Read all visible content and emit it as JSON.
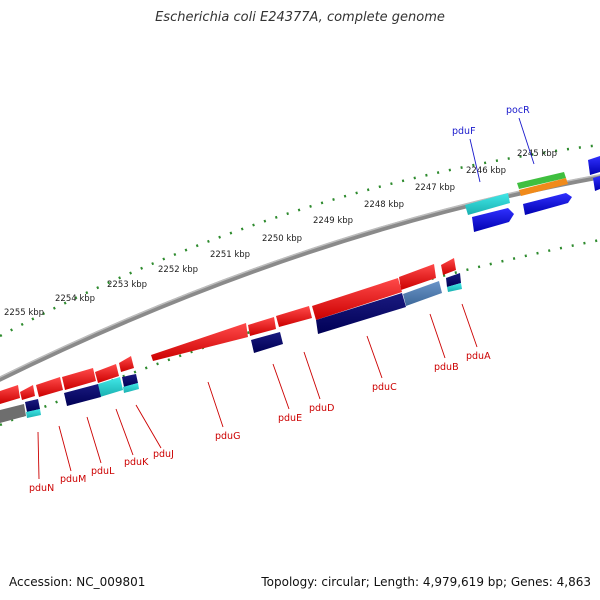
{
  "title": "Escherichia coli E24377A, complete genome",
  "footer": {
    "accession": "Accession: NC_009801",
    "summary": "Topology: circular; Length: 4,979,619 bp; Genes: 4,863"
  },
  "colors": {
    "backbone": "#8a8a8a",
    "ticks": "#2e8b2e",
    "forward_label": "#1a1acc",
    "reverse_label": "#cc0000"
  },
  "scale_labels": [
    "2245 kbp",
    "2246 kbp",
    "2247 kbp",
    "2248 kbp",
    "2249 kbp",
    "2250 kbp",
    "2251 kbp",
    "2252 kbp",
    "2253 kbp",
    "2254 kbp",
    "2255 kbp"
  ],
  "forward_gene_labels": [
    "pduF",
    "pocR"
  ],
  "reverse_gene_labels": [
    "pduA",
    "pduB",
    "pduC",
    "pduD",
    "pduE",
    "pduG",
    "pduJ",
    "pduK",
    "pduL",
    "pduM",
    "pduN"
  ]
}
